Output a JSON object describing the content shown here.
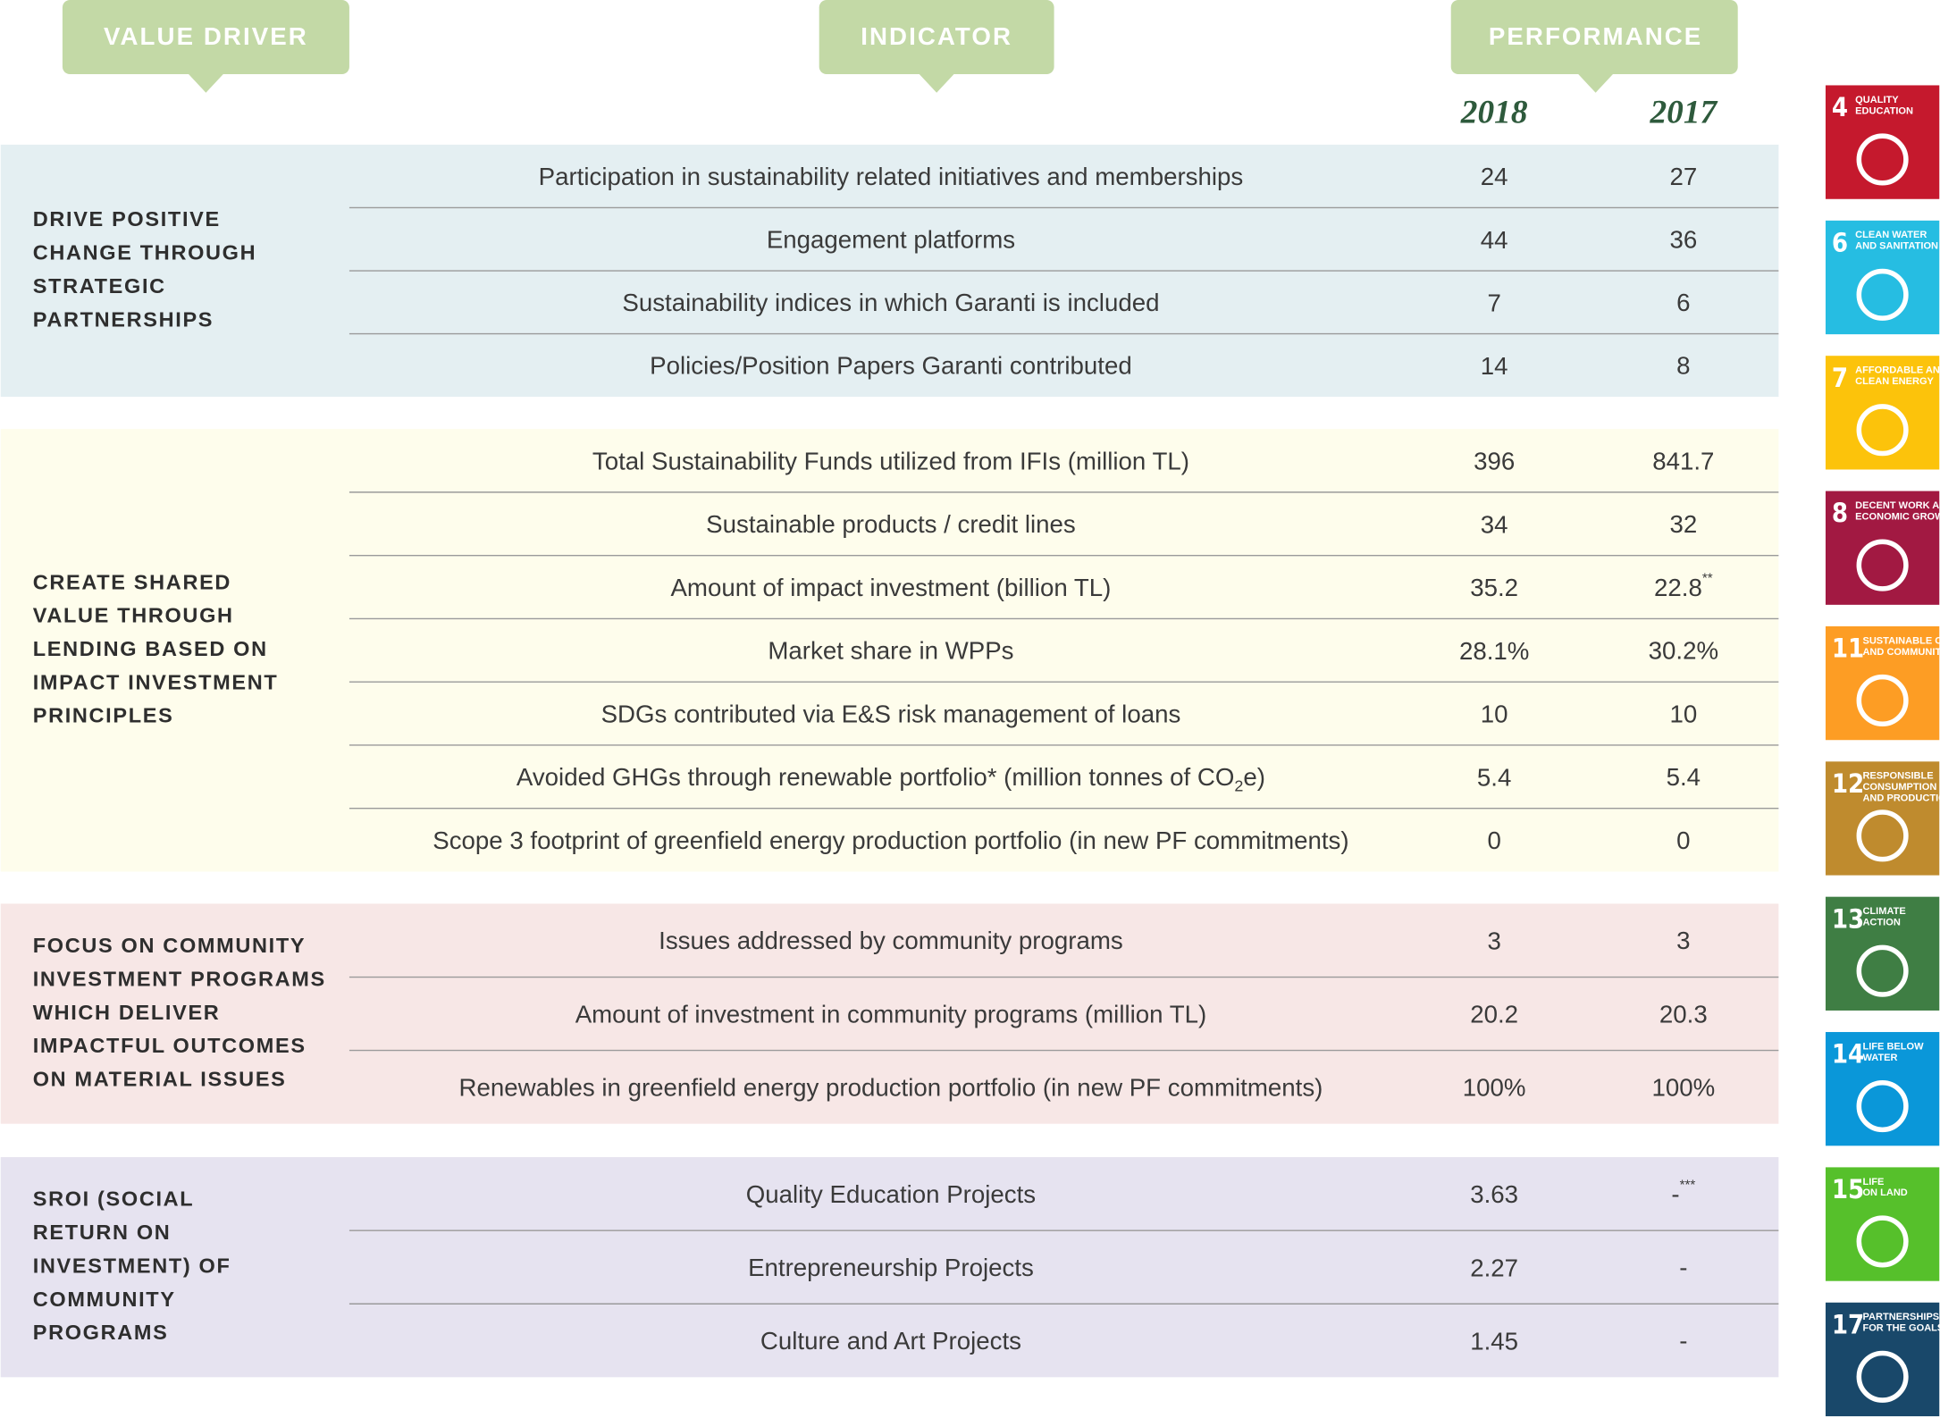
{
  "headers": [
    "VALUE DRIVER",
    "INDICATOR",
    "PERFORMANCE"
  ],
  "years": [
    "2018",
    "2017"
  ],
  "groups": [
    {
      "driver": [
        "DRIVE POSITIVE",
        "CHANGE THROUGH",
        "STRATEGIC",
        "PARTNERSHIPS"
      ],
      "rows": [
        {
          "indicator": "Participation in sustainability related initiatives and memberships",
          "v2018": "24",
          "v2017": "27"
        },
        {
          "indicator": "Engagement platforms",
          "v2018": "44",
          "v2017": "36"
        },
        {
          "indicator": "Sustainability indices in which Garanti is included",
          "v2018": "7",
          "v2017": "6"
        },
        {
          "indicator": "Policies/Position Papers Garanti contributed",
          "v2018": "14",
          "v2017": "8"
        }
      ]
    },
    {
      "driver": [
        "CREATE SHARED",
        " VALUE THROUGH",
        "LENDING BASED ON",
        "IMPACT INVESTMENT",
        "PRINCIPLES"
      ],
      "rows": [
        {
          "indicator": "Total Sustainability Funds utilized from IFIs (million TL)",
          "v2018": "396",
          "v2017": "841.7"
        },
        {
          "indicator": "Sustainable products / credit lines",
          "v2018": "34",
          "v2017": "32"
        },
        {
          "indicator": "Amount of impact investment (billion TL)",
          "v2018": "35.2",
          "v2017": "22.8",
          "v2017_note": "**"
        },
        {
          "indicator": "Market share in WPPs",
          "v2018": "28.1%",
          "v2017": "30.2%"
        },
        {
          "indicator": "SDGs contributed via E&S risk management of loans",
          "v2018": "10",
          "v2017": "10"
        },
        {
          "indicator": "Avoided GHGs through renewable portfolio* (million tonnes of CO",
          "indicator_sub": "2",
          "indicator_end": "e)",
          "v2018": "5.4",
          "v2017": "5.4"
        },
        {
          "indicator": "Scope 3 footprint of greenfield energy production portfolio (in new PF commitments)",
          "v2018": "0",
          "v2017": "0"
        }
      ]
    },
    {
      "driver": [
        "FOCUS ON COMMUNITY",
        "INVESTMENT PROGRAMS",
        "WHICH DELIVER",
        "IMPACTFUL OUTCOMES",
        "ON MATERIAL ISSUES"
      ],
      "rows": [
        {
          "indicator": "Issues addressed by community programs",
          "v2018": "3",
          "v2017": "3"
        },
        {
          "indicator": "Amount of investment in community programs (million TL)",
          "v2018": "20.2",
          "v2017": "20.3"
        },
        {
          "indicator": "Renewables in greenfield energy production portfolio (in new PF commitments)",
          "v2018": "100%",
          "v2017": "100%"
        }
      ]
    },
    {
      "driver": [
        "SROI (SOCIAL",
        "RETURN ON",
        "INVESTMENT) OF",
        "COMMUNITY",
        "PROGRAMS"
      ],
      "rows": [
        {
          "indicator": "Quality Education Projects",
          "v2018": "3.63",
          "v2017": "-",
          "v2017_note": "***"
        },
        {
          "indicator": "Entrepreneurship Projects",
          "v2018": "2.27",
          "v2017": "-"
        },
        {
          "indicator": "Culture and Art Projects",
          "v2018": "1.45",
          "v2017": "-"
        }
      ]
    }
  ],
  "sdgs": [
    {
      "number": "4",
      "label": [
        "QUALITY",
        "EDUCATION"
      ]
    },
    {
      "number": "6",
      "label": [
        "CLEAN WATER",
        "AND SANITATION"
      ]
    },
    {
      "number": "7",
      "label": [
        "AFFORDABLE AND",
        "CLEAN ENERGY"
      ]
    },
    {
      "number": "8",
      "label": [
        "DECENT WORK AND",
        "ECONOMIC GROWTH"
      ]
    },
    {
      "number": "11",
      "label": [
        "SUSTAINABLE CITIES",
        "AND COMMUNITIES"
      ]
    },
    {
      "number": "12",
      "label": [
        "RESPONSIBLE",
        "CONSUMPTION",
        "AND PRODUCTION"
      ]
    },
    {
      "number": "13",
      "label": [
        "CLIMATE",
        "ACTION"
      ]
    },
    {
      "number": "14",
      "label": [
        "LIFE BELOW",
        "WATER"
      ]
    },
    {
      "number": "15",
      "label": [
        "LIFE",
        "ON LAND"
      ]
    },
    {
      "number": "17",
      "label": [
        "PARTNERSHIPS",
        "FOR THE GOALS"
      ]
    }
  ]
}
